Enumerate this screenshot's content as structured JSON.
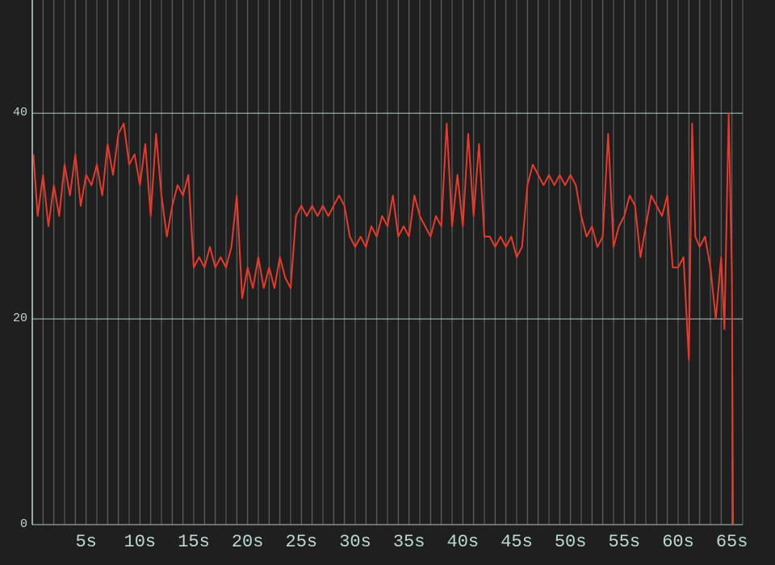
{
  "chart_data": {
    "type": "line",
    "x": [
      0.1,
      0.5,
      1,
      1.5,
      2,
      2.5,
      3,
      3.5,
      4,
      4.5,
      5,
      5.5,
      6,
      6.5,
      7,
      7.5,
      8,
      8.5,
      9,
      9.5,
      10,
      10.5,
      11,
      11.5,
      12,
      12.5,
      13,
      13.5,
      14,
      14.5,
      15,
      15.5,
      16,
      16.5,
      17,
      17.5,
      18,
      18.5,
      19,
      19.5,
      20,
      20.5,
      21,
      21.5,
      22,
      22.5,
      23,
      23.5,
      24,
      24.5,
      25,
      25.5,
      26,
      26.5,
      27,
      27.5,
      28,
      28.5,
      29,
      29.5,
      30,
      30.5,
      31,
      31.5,
      32,
      32.5,
      33,
      33.5,
      34,
      34.5,
      35,
      35.5,
      36,
      36.5,
      37,
      37.5,
      38,
      38.5,
      39,
      39.5,
      40,
      40.5,
      41,
      41.5,
      42,
      42.5,
      43,
      43.5,
      44,
      44.5,
      45,
      45.5,
      46,
      46.5,
      47,
      47.5,
      48,
      48.5,
      49,
      49.5,
      50,
      50.5,
      51,
      51.5,
      52,
      52.5,
      53,
      53.5,
      54,
      54.5,
      55,
      55.5,
      56,
      56.5,
      57,
      57.5,
      58,
      58.5,
      59,
      59.5,
      60,
      60.5,
      61,
      61.3,
      61.6,
      62,
      62.5,
      63,
      63.5,
      64,
      64.3,
      64.7,
      65,
      65.1
    ],
    "series": [
      {
        "color": "#e8392b",
        "values": [
          36,
          30,
          34,
          29,
          33,
          30,
          35,
          32,
          36,
          31,
          34,
          33,
          35,
          32,
          37,
          34,
          38,
          39,
          35,
          36,
          33,
          37,
          30,
          38,
          32,
          28,
          31,
          33,
          32,
          34,
          25,
          26,
          25,
          27,
          25,
          26,
          25,
          27,
          32,
          22,
          25,
          23,
          26,
          23,
          25,
          23,
          26,
          24,
          23,
          30,
          31,
          30,
          31,
          30,
          31,
          30,
          31,
          32,
          31,
          28,
          27,
          28,
          27,
          29,
          28,
          30,
          29,
          32,
          28,
          29,
          28,
          32,
          30,
          29,
          28,
          30,
          29,
          39,
          29,
          34,
          29,
          38,
          30,
          37,
          28,
          28,
          27,
          28,
          27,
          28,
          26,
          27,
          33,
          35,
          34,
          33,
          34,
          33,
          34,
          33,
          34,
          33,
          30,
          28,
          29,
          27,
          28,
          38,
          27,
          29,
          30,
          32,
          31,
          26,
          29,
          32,
          31,
          30,
          32,
          25,
          25,
          26,
          16,
          39,
          28,
          27,
          28,
          25,
          20,
          26,
          19,
          40,
          24,
          0
        ]
      }
    ],
    "xlim": [
      0,
      66
    ],
    "ylim": [
      0,
      51
    ],
    "xticks": [
      {
        "value": 5,
        "label": "5s"
      },
      {
        "value": 10,
        "label": "10s"
      },
      {
        "value": 15,
        "label": "15s"
      },
      {
        "value": 20,
        "label": "20s"
      },
      {
        "value": 25,
        "label": "25s"
      },
      {
        "value": 30,
        "label": "30s"
      },
      {
        "value": 35,
        "label": "35s"
      },
      {
        "value": 40,
        "label": "40s"
      },
      {
        "value": 45,
        "label": "45s"
      },
      {
        "value": 50,
        "label": "50s"
      },
      {
        "value": 55,
        "label": "55s"
      },
      {
        "value": 60,
        "label": "60s"
      },
      {
        "value": 65,
        "label": "65s"
      }
    ],
    "xgrid": [
      1,
      2,
      3,
      4,
      5,
      6,
      7,
      8,
      9,
      10,
      11,
      12,
      13,
      14,
      15,
      16,
      17,
      18,
      19,
      20,
      21,
      22,
      23,
      24,
      25,
      26,
      27,
      28,
      29,
      30,
      31,
      32,
      33,
      34,
      35,
      36,
      37,
      38,
      39,
      40,
      41,
      42,
      43,
      44,
      45,
      46,
      47,
      48,
      49,
      50,
      51,
      52,
      53,
      54,
      55,
      56,
      57,
      58,
      59,
      60,
      61,
      62,
      63,
      64,
      65,
      66
    ],
    "yticks": [
      0,
      20,
      40
    ],
    "grid": true
  }
}
